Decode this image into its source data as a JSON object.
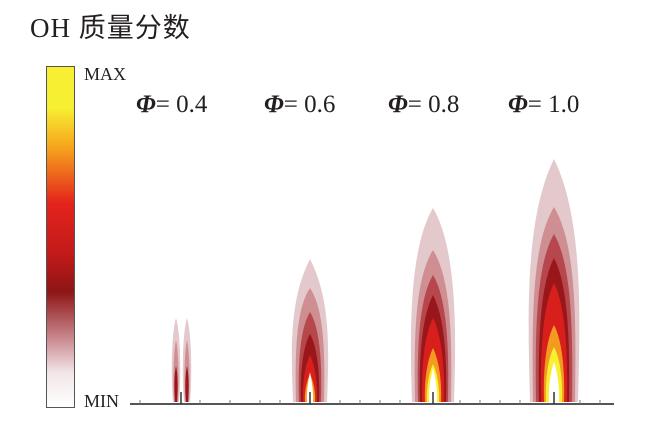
{
  "title": "OH 质量分数",
  "colorbar": {
    "max_label": "MAX",
    "min_label": "MIN",
    "colors": [
      "#f7ef32",
      "#f6a21c",
      "#e3241c",
      "#8e1515",
      "#f2e6e8",
      "#ffffff"
    ]
  },
  "cases": [
    {
      "symbol": "Φ",
      "label": "= 0.4"
    },
    {
      "symbol": "Φ",
      "label": "= 0.6"
    },
    {
      "symbol": "Φ",
      "label": "= 0.8"
    },
    {
      "symbol": "Φ",
      "label": "= 1.0"
    }
  ],
  "flame_colors": {
    "outer": "#e3c9cb",
    "mid1": "#cf8e91",
    "mid2": "#b5474d",
    "dark": "#99161b",
    "red": "#d81f1c",
    "orange": "#f39b1e",
    "yellow": "#f7ef32",
    "core": "#ffffff"
  }
}
